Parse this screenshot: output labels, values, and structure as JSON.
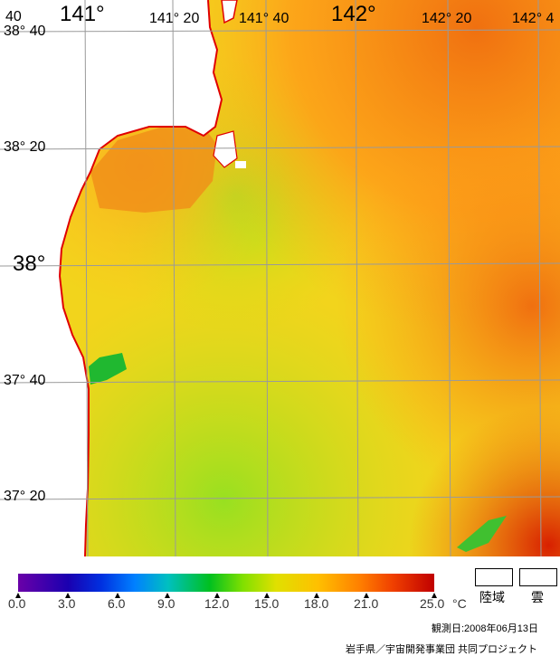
{
  "map": {
    "lat_labels": [
      "38° 40",
      "38° 20",
      "38°",
      "37° 40",
      "37° 20"
    ],
    "lon_labels": [
      "141°",
      "141° 20",
      "141° 40",
      "142°",
      "142° 20",
      "142° 4"
    ],
    "corner_label": "40"
  },
  "colorbar": {
    "ticks": [
      "0.0",
      "3.0",
      "6.0",
      "9.0",
      "12.0",
      "15.0",
      "18.0",
      "21.0",
      "25.0"
    ],
    "unit": "°C"
  },
  "legend": {
    "land": "陸域",
    "cloud": "雲"
  },
  "footer": {
    "observation_date": "観測日:2008年06月13日",
    "credit": "岩手県／宇宙開発事業団 共同プロジェクト"
  },
  "colors": {
    "coastline": "#e00000",
    "grid": "#9a9a9a"
  }
}
